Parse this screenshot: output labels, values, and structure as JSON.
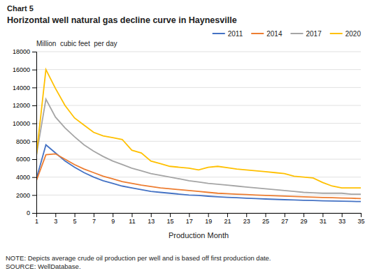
{
  "chart_data": {
    "type": "line",
    "title": "Chart 5",
    "subtitle": "Horizontal well natural gas decline curve in Haynesville",
    "y_label": "Million  cubic feet  per day",
    "x_label": "Production Month",
    "annotations": [
      "NOTE: Depicts average crude oil production per well and is based off first production date.",
      "SOURCE: WellDatabase."
    ],
    "x": [
      1,
      2,
      3,
      4,
      5,
      6,
      7,
      8,
      9,
      10,
      11,
      12,
      13,
      14,
      15,
      16,
      17,
      18,
      19,
      20,
      21,
      22,
      23,
      24,
      25,
      26,
      27,
      28,
      29,
      30,
      31,
      32,
      33,
      34,
      35
    ],
    "xlim": [
      1,
      35
    ],
    "xticks": [
      1,
      3,
      5,
      7,
      9,
      11,
      13,
      15,
      17,
      19,
      21,
      23,
      25,
      27,
      29,
      31,
      33,
      35
    ],
    "ylim": [
      0,
      18000
    ],
    "yticks": [
      0,
      2000,
      4000,
      6000,
      8000,
      10000,
      12000,
      14000,
      16000,
      18000
    ],
    "grid": true,
    "legend": "top-right",
    "series": [
      {
        "name": "2011",
        "color": "#4472c4",
        "values": [
          3800,
          7600,
          6700,
          5800,
          5100,
          4500,
          4000,
          3600,
          3300,
          3000,
          2800,
          2600,
          2400,
          2300,
          2200,
          2100,
          2000,
          1950,
          1870,
          1800,
          1750,
          1700,
          1650,
          1600,
          1560,
          1520,
          1480,
          1450,
          1420,
          1390,
          1360,
          1340,
          1310,
          1290,
          1270
        ]
      },
      {
        "name": "2014",
        "color": "#ed7d31",
        "values": [
          3600,
          6500,
          6600,
          6000,
          5400,
          4900,
          4500,
          4100,
          3800,
          3500,
          3300,
          3100,
          2950,
          2800,
          2700,
          2600,
          2500,
          2400,
          2300,
          2200,
          2150,
          2100,
          2050,
          2000,
          1960,
          1920,
          1880,
          1840,
          1800,
          1760,
          1730,
          1700,
          1670,
          1640,
          1600
        ]
      },
      {
        "name": "2017",
        "color": "#a5a5a5",
        "values": [
          6400,
          12700,
          10700,
          9500,
          8500,
          7600,
          6900,
          6300,
          5800,
          5400,
          5000,
          4700,
          4400,
          4200,
          4000,
          3800,
          3600,
          3450,
          3300,
          3200,
          3100,
          3000,
          2900,
          2800,
          2700,
          2600,
          2500,
          2400,
          2300,
          2250,
          2200,
          2200,
          2200,
          2100,
          2100
        ]
      },
      {
        "name": "2020",
        "color": "#ffc000",
        "values": [
          6400,
          16000,
          13900,
          12000,
          10600,
          9800,
          9000,
          8600,
          8400,
          8200,
          7000,
          6700,
          5800,
          5500,
          5200,
          5100,
          5000,
          4800,
          5100,
          5200,
          5050,
          4900,
          4800,
          4700,
          4600,
          4500,
          4400,
          4100,
          4000,
          3900,
          3400,
          3000,
          2800,
          2800,
          2800
        ]
      }
    ]
  }
}
